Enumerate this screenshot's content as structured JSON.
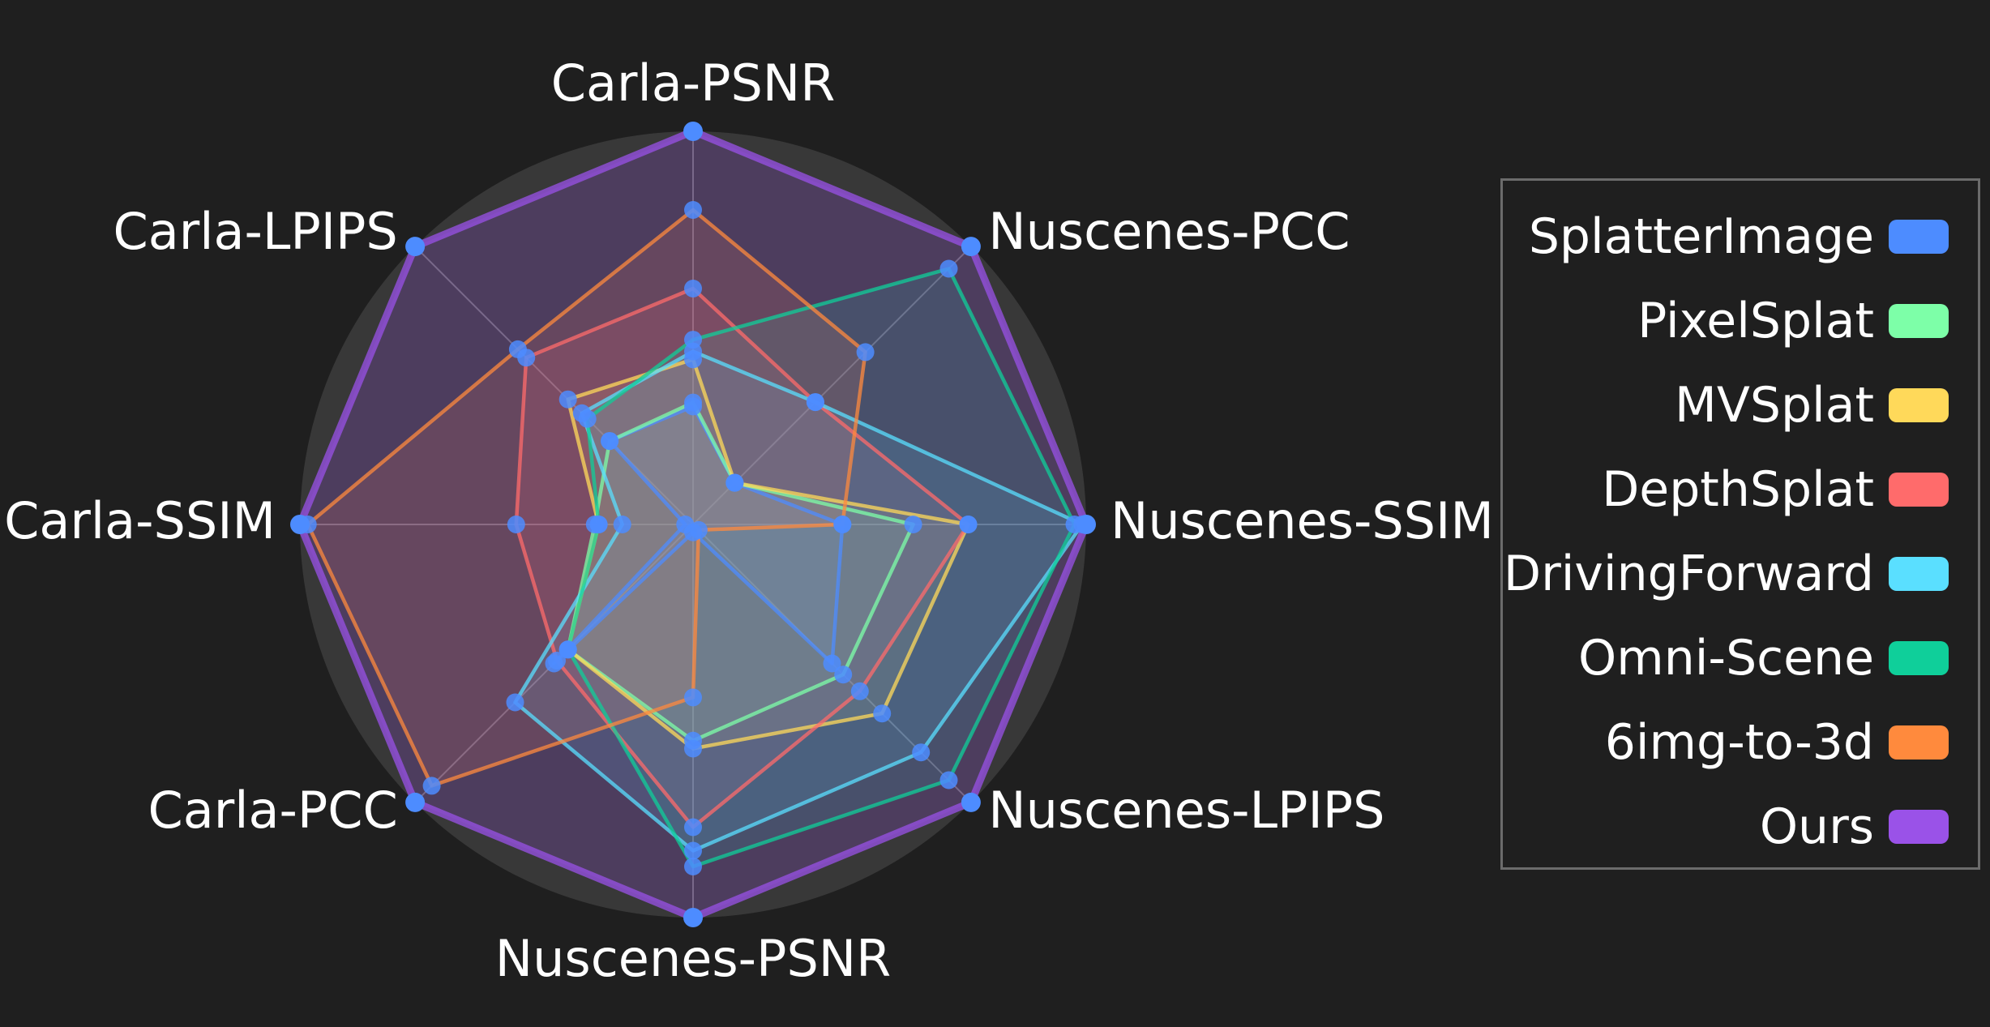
{
  "chart_data": {
    "type": "radar",
    "axes": [
      "Carla-PSNR",
      "Nuscenes-PCC",
      "Nuscenes-SSIM",
      "Nuscenes-LPIPS",
      "Nuscenes-PSNR",
      "Carla-PCC",
      "Carla-SSIM",
      "Carla-LPIPS"
    ],
    "range": [
      0,
      1
    ],
    "grid": true,
    "legend_position": "right",
    "series": [
      {
        "name": "SplatterImage",
        "color": "#4d8cff",
        "values": [
          0.3,
          0.15,
          0.38,
          0.5,
          0.02,
          0.5,
          0.02,
          0.3
        ]
      },
      {
        "name": "PixelSplat",
        "color": "#7dffa8",
        "values": [
          0.31,
          0.15,
          0.56,
          0.54,
          0.55,
          0.45,
          0.25,
          0.3
        ]
      },
      {
        "name": "MVSplat",
        "color": "#ffd95a",
        "values": [
          0.42,
          0.15,
          0.7,
          0.68,
          0.57,
          0.45,
          0.24,
          0.45
        ]
      },
      {
        "name": "DepthSplat",
        "color": "#ff6b6b",
        "values": [
          0.6,
          0.44,
          0.7,
          0.6,
          0.77,
          0.49,
          0.45,
          0.6
        ]
      },
      {
        "name": "DrivingForward",
        "color": "#5adfff",
        "values": [
          0.44,
          0.44,
          0.99,
          0.82,
          0.83,
          0.64,
          0.18,
          0.4
        ]
      },
      {
        "name": "Omni-Scene",
        "color": "#0fcf9a",
        "values": [
          0.47,
          0.92,
          0.97,
          0.92,
          0.87,
          0.45,
          0.24,
          0.38
        ]
      },
      {
        "name": "6img-to-3d",
        "color": "#ff8a3d",
        "values": [
          0.8,
          0.62,
          0.38,
          0.02,
          0.44,
          0.94,
          0.98,
          0.63
        ]
      },
      {
        "name": "Ours",
        "color": "#9a52e8",
        "values": [
          1.0,
          1.0,
          1.0,
          1.0,
          1.0,
          1.0,
          1.0,
          1.0
        ]
      }
    ]
  }
}
